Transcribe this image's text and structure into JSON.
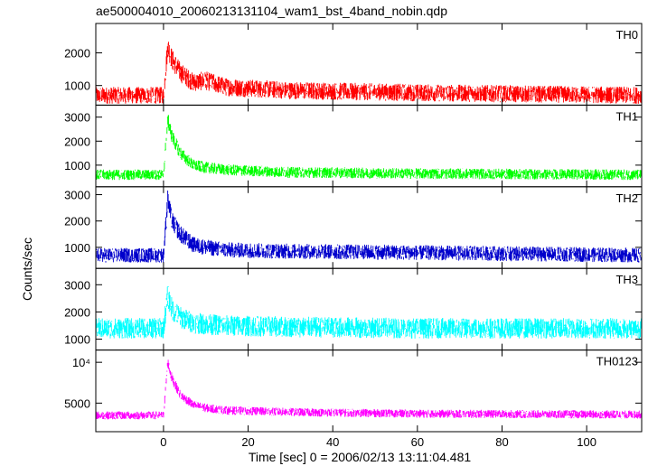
{
  "chart_data": {
    "type": "line",
    "title": "ae500004010_20060213131104_wam1_bst_4band_nobin.qdp",
    "xlabel": "Time [sec] 0 = 2006/02/13 13:11:04.481",
    "ylabel": "Counts/sec",
    "xlim": [
      -16,
      113
    ],
    "x_ticks": [
      0,
      20,
      40,
      60,
      80,
      100
    ],
    "x_tick_labels": [
      "0",
      "20",
      "40",
      "60",
      "80",
      "100"
    ],
    "grid": false,
    "panels": [
      {
        "name": "TH0",
        "color": "#ff0000",
        "ylim": [
          400,
          2900
        ],
        "y_ticks": [
          1000,
          2000
        ],
        "y_tick_labels": [
          "1000",
          "2000"
        ],
        "profile": {
          "x": [
            -16,
            0,
            1,
            2,
            4,
            7,
            10,
            15,
            30,
            60,
            113
          ],
          "y": [
            700,
            700,
            2200,
            1800,
            1400,
            1100,
            1150,
            950,
            850,
            780,
            700
          ]
        },
        "noise": 260
      },
      {
        "name": "TH1",
        "color": "#00ff00",
        "ylim": [
          100,
          3500
        ],
        "y_ticks": [
          1000,
          2000,
          3000
        ],
        "y_tick_labels": [
          "1000",
          "2000",
          "3000"
        ],
        "profile": {
          "x": [
            -16,
            0,
            1,
            2,
            4,
            7,
            10,
            15,
            30,
            60,
            113
          ],
          "y": [
            600,
            600,
            2900,
            2200,
            1500,
            1000,
            900,
            800,
            700,
            650,
            600
          ]
        },
        "noise": 220
      },
      {
        "name": "TH2",
        "color": "#0000cc",
        "ylim": [
          200,
          3300
        ],
        "y_ticks": [
          1000,
          2000,
          3000
        ],
        "y_tick_labels": [
          "1000",
          "2000",
          "3000"
        ],
        "profile": {
          "x": [
            -16,
            0,
            1,
            2,
            4,
            7,
            10,
            15,
            30,
            60,
            113
          ],
          "y": [
            700,
            700,
            2800,
            2000,
            1500,
            1100,
            1000,
            900,
            850,
            800,
            700
          ]
        },
        "noise": 280
      },
      {
        "name": "TH3",
        "color": "#00ffff",
        "ylim": [
          600,
          3600
        ],
        "y_ticks": [
          1000,
          2000,
          3000
        ],
        "y_tick_labels": [
          "1000",
          "2000",
          "3000"
        ],
        "profile": {
          "x": [
            -16,
            0,
            1,
            2,
            4,
            7,
            10,
            15,
            30,
            60,
            113
          ],
          "y": [
            1400,
            1400,
            2600,
            2100,
            1800,
            1600,
            1550,
            1500,
            1450,
            1400,
            1400
          ]
        },
        "noise": 380
      },
      {
        "name": "TH0123",
        "color": "#ff00ff",
        "ylim": [
          1500,
          11500
        ],
        "y_ticks": [
          5000,
          10000
        ],
        "y_tick_labels": [
          "5000",
          "10⁴"
        ],
        "profile": {
          "x": [
            -16,
            0,
            1,
            2,
            4,
            7,
            10,
            15,
            30,
            60,
            113
          ],
          "y": [
            3500,
            3500,
            10000,
            8000,
            6000,
            4800,
            4400,
            4100,
            3900,
            3700,
            3600
          ]
        },
        "noise": 500
      }
    ]
  }
}
